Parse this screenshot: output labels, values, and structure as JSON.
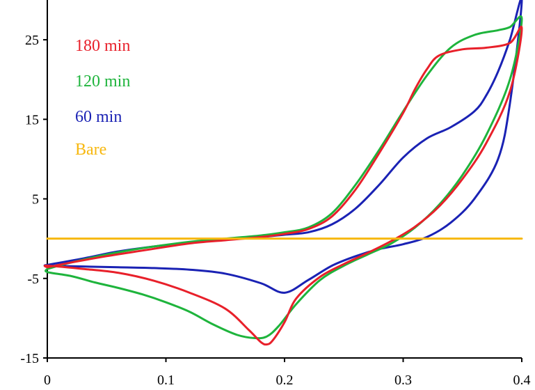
{
  "chart_data": {
    "type": "line",
    "title": "",
    "xlabel": "",
    "ylabel": "",
    "xlim": [
      0,
      0.4
    ],
    "ylim": [
      -15,
      30
    ],
    "x_ticks": [
      0,
      0.1,
      0.2,
      0.3,
      0.4
    ],
    "x_tick_labels": [
      "0",
      "0.1",
      "0.2",
      "0.3",
      "0.4"
    ],
    "y_ticks": [
      -15,
      -5,
      5,
      15,
      25
    ],
    "y_tick_labels": [
      "-15",
      "-5",
      "5",
      "15",
      "25"
    ],
    "grid": false,
    "legend_placement": "top-left",
    "series": [
      {
        "name": "180 min",
        "color": "#e8202a",
        "x": [
          0,
          0.02,
          0.05,
          0.08,
          0.12,
          0.15,
          0.18,
          0.2,
          0.22,
          0.24,
          0.26,
          0.28,
          0.3,
          0.31,
          0.32,
          0.33,
          0.35,
          0.37,
          0.39,
          0.4,
          0.39,
          0.37,
          0.35,
          0.33,
          0.31,
          0.29,
          0.27,
          0.25,
          0.23,
          0.21,
          0.2,
          0.19,
          0.185,
          0.18,
          0.17,
          0.15,
          0.12,
          0.09,
          0.06,
          0.03,
          0,
          0
        ],
        "y": [
          -3.6,
          -3.0,
          -2.2,
          -1.5,
          -0.6,
          -0.2,
          0.2,
          0.6,
          1.2,
          2.8,
          6.2,
          10.8,
          15.8,
          18.8,
          21.3,
          23.0,
          23.8,
          24.0,
          24.6,
          26.4,
          18.5,
          12.0,
          7.5,
          4.0,
          1.5,
          -0.3,
          -1.8,
          -3.2,
          -4.8,
          -7.5,
          -10.5,
          -12.8,
          -13.3,
          -13.0,
          -11.5,
          -8.8,
          -6.8,
          -5.3,
          -4.3,
          -3.8,
          -3.4,
          -3.6
        ]
      },
      {
        "name": "120 min",
        "color": "#1eb43c",
        "x": [
          0,
          0.02,
          0.05,
          0.08,
          0.12,
          0.15,
          0.18,
          0.2,
          0.22,
          0.24,
          0.26,
          0.28,
          0.3,
          0.32,
          0.34,
          0.36,
          0.38,
          0.39,
          0.4,
          0.39,
          0.37,
          0.35,
          0.33,
          0.31,
          0.29,
          0.27,
          0.25,
          0.23,
          0.21,
          0.195,
          0.185,
          0.175,
          0.16,
          0.14,
          0.12,
          0.1,
          0.08,
          0.06,
          0.04,
          0.02,
          0,
          0
        ],
        "y": [
          -3.8,
          -3.0,
          -2.0,
          -1.2,
          -0.4,
          0.0,
          0.4,
          0.8,
          1.4,
          3.2,
          6.8,
          11.2,
          16.0,
          20.5,
          24.0,
          25.6,
          26.2,
          26.6,
          27.6,
          20.0,
          13.0,
          8.0,
          4.2,
          1.4,
          -0.6,
          -2.0,
          -3.4,
          -5.2,
          -8.2,
          -11.0,
          -12.3,
          -12.5,
          -12.1,
          -10.8,
          -9.2,
          -8.0,
          -7.0,
          -6.2,
          -5.5,
          -4.7,
          -4.2,
          -3.8
        ]
      },
      {
        "name": "60 min",
        "color": "#1a22b4",
        "x": [
          0,
          0.03,
          0.06,
          0.1,
          0.14,
          0.18,
          0.2,
          0.22,
          0.24,
          0.26,
          0.28,
          0.3,
          0.32,
          0.34,
          0.36,
          0.37,
          0.38,
          0.39,
          0.4,
          0.39,
          0.38,
          0.36,
          0.34,
          0.32,
          0.3,
          0.28,
          0.26,
          0.24,
          0.22,
          0.2,
          0.18,
          0.15,
          0.12,
          0.09,
          0.06,
          0.03,
          0,
          0
        ],
        "y": [
          -3.3,
          -2.5,
          -1.6,
          -0.8,
          -0.2,
          0.2,
          0.5,
          0.8,
          1.8,
          3.8,
          6.8,
          10.2,
          12.6,
          14.0,
          16.0,
          18.0,
          21.0,
          25.0,
          30.0,
          17.0,
          10.0,
          5.0,
          2.0,
          0.2,
          -0.7,
          -1.3,
          -2.2,
          -3.4,
          -5.2,
          -6.8,
          -5.6,
          -4.4,
          -3.9,
          -3.7,
          -3.6,
          -3.5,
          -3.4,
          -3.3
        ]
      },
      {
        "name": "Bare",
        "color": "#f7b810",
        "x": [
          0,
          0.4
        ],
        "y": [
          0,
          0
        ]
      }
    ]
  }
}
